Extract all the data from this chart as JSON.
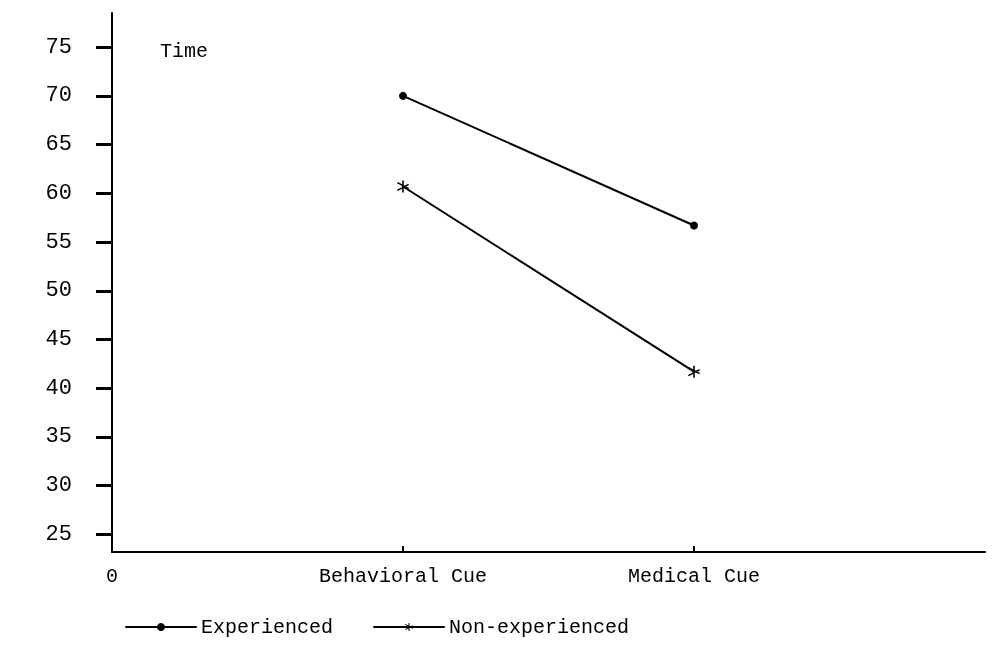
{
  "chart_data": {
    "type": "line",
    "ylabel": "Time",
    "categories": [
      "0",
      "Behavioral Cue",
      "Medical Cue",
      null
    ],
    "ylim": [
      23.2,
      78.5
    ],
    "yticks": [
      25,
      30,
      35,
      40,
      45,
      50,
      55,
      60,
      65,
      70,
      75
    ],
    "series": [
      {
        "name": "Experienced",
        "color": "#000000",
        "values": [
          null,
          70,
          56.7,
          null
        ],
        "marker": "circle"
      },
      {
        "name": "Non-experienced",
        "color": "#000000",
        "values": [
          null,
          60.7,
          41.7,
          null
        ],
        "marker": "cross"
      }
    ],
    "line_style": "solid",
    "grid": false,
    "legend": "bottom"
  }
}
